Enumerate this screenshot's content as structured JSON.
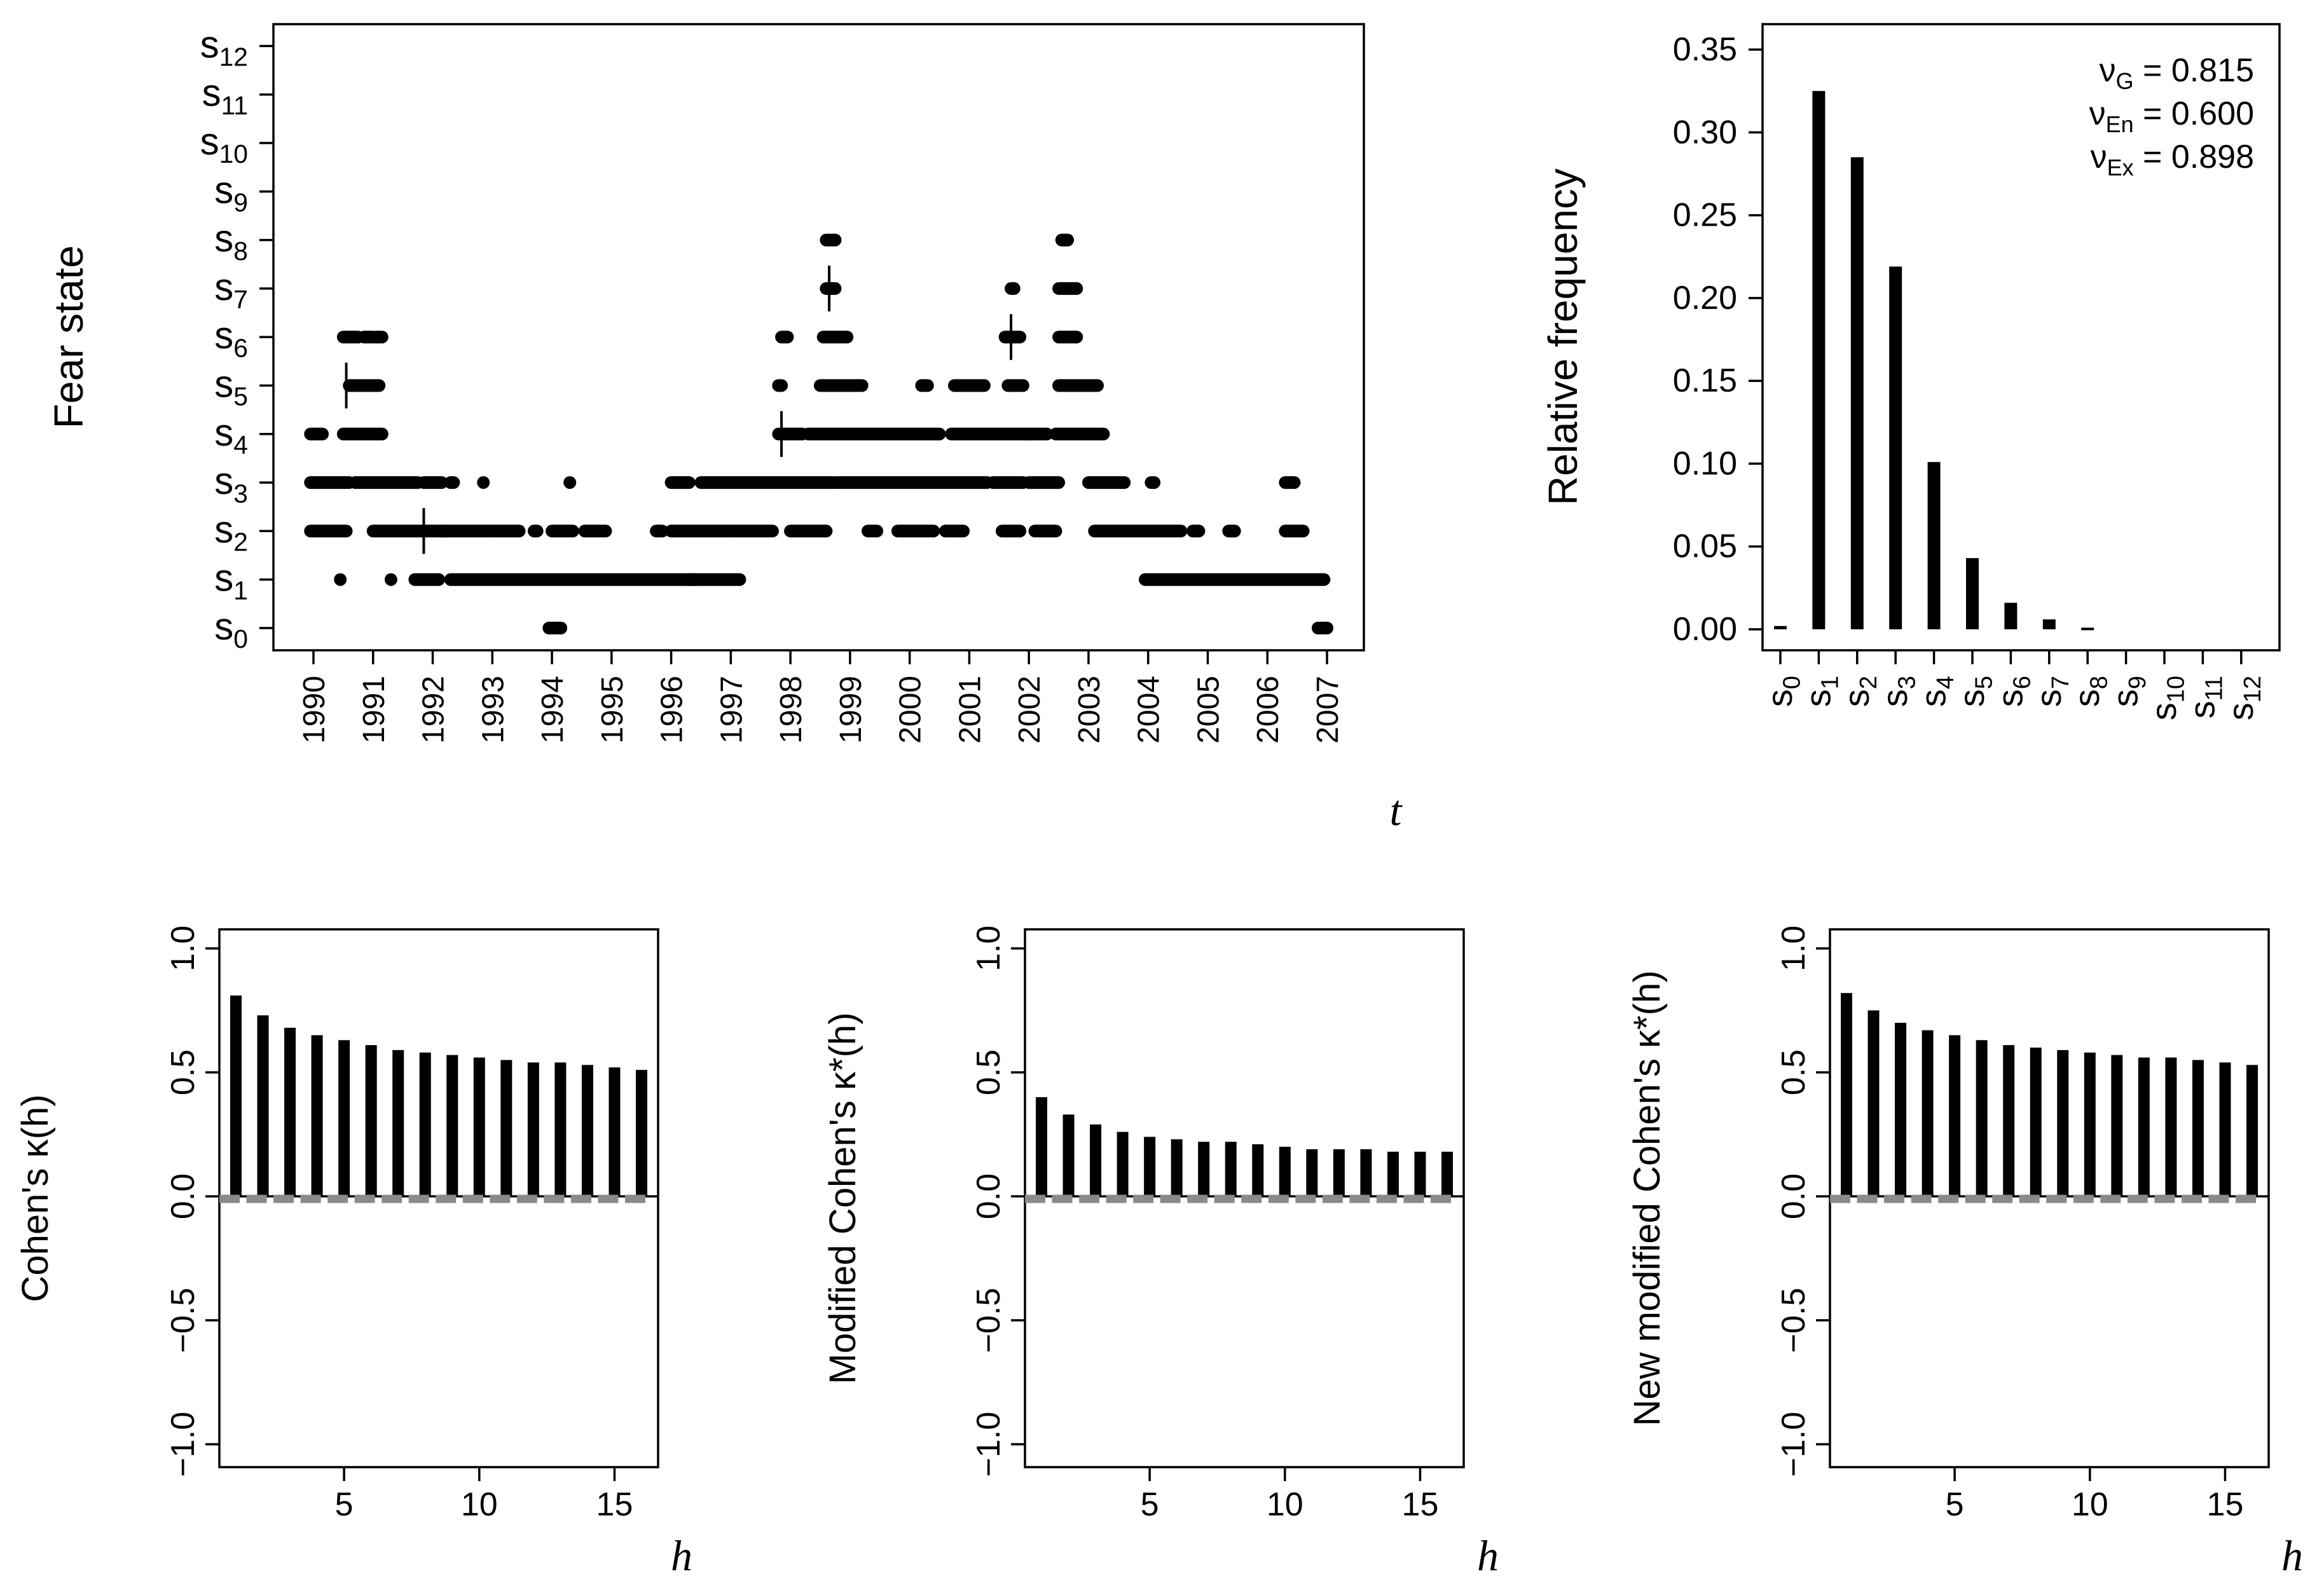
{
  "chart_data": [
    {
      "id": "fear-state-series",
      "type": "scatter",
      "title": "",
      "ylabel": "Fear state",
      "xlabel": "t",
      "y_categories": [
        "s0",
        "s1",
        "s2",
        "s3",
        "s4",
        "s5",
        "s6",
        "s7",
        "s8",
        "s9",
        "s10",
        "s11",
        "s12"
      ],
      "x_ticks": [
        "1990",
        "1991",
        "1992",
        "1993",
        "1994",
        "1995",
        "1996",
        "1997",
        "1998",
        "1999",
        "2000",
        "2001",
        "2002",
        "2003",
        "2004",
        "2005",
        "2006",
        "2007"
      ],
      "xlim": [
        1990,
        2007
      ],
      "ylim": [
        0,
        12
      ],
      "segments": [
        {
          "x": [
            1989.95,
            1990.15
          ],
          "y": 4
        },
        {
          "x": [
            1989.95,
            1990.6
          ],
          "y": 3
        },
        {
          "x": [
            1989.95,
            1990.55
          ],
          "y": 2
        },
        {
          "x": [
            1990.45,
            1990.45
          ],
          "y": 1
        },
        {
          "x": [
            1990.5,
            1990.75
          ],
          "y": 6
        },
        {
          "x": [
            1990.6,
            1991.1
          ],
          "y": 5
        },
        {
          "x": [
            1990.5,
            1991.15
          ],
          "y": 4
        },
        {
          "x": [
            1990.85,
            1991.0
          ],
          "y": 6
        },
        {
          "x": [
            1991.05,
            1991.15
          ],
          "y": 6
        },
        {
          "x": [
            1990.7,
            1991.75
          ],
          "y": 3
        },
        {
          "x": [
            1991.0,
            1992.2
          ],
          "y": 2
        },
        {
          "x": [
            1991.3,
            1991.3
          ],
          "y": 1
        },
        {
          "x": [
            1991.7,
            1992.1
          ],
          "y": 1
        },
        {
          "x": [
            1991.85,
            1992.15
          ],
          "y": 3
        },
        {
          "x": [
            1992.3,
            1992.35
          ],
          "y": 3
        },
        {
          "x": [
            1992.1,
            1993.0
          ],
          "y": 2
        },
        {
          "x": [
            1992.3,
            1996.4
          ],
          "y": 1
        },
        {
          "x": [
            1992.85,
            1992.85
          ],
          "y": 3
        },
        {
          "x": [
            1993.0,
            1993.45
          ],
          "y": 2
        },
        {
          "x": [
            1993.7,
            1993.75
          ],
          "y": 2
        },
        {
          "x": [
            1993.95,
            1994.15
          ],
          "y": 0
        },
        {
          "x": [
            1994.0,
            1994.35
          ],
          "y": 2
        },
        {
          "x": [
            1994.3,
            1994.3
          ],
          "y": 3
        },
        {
          "x": [
            1994.55,
            1994.9
          ],
          "y": 2
        },
        {
          "x": [
            1995.75,
            1995.85
          ],
          "y": 2
        },
        {
          "x": [
            1996.0,
            1997.0
          ],
          "y": 2
        },
        {
          "x": [
            1996.0,
            1996.3
          ],
          "y": 3
        },
        {
          "x": [
            1996.3,
            1997.15
          ],
          "y": 1
        },
        {
          "x": [
            1996.5,
            1997.6
          ],
          "y": 3
        },
        {
          "x": [
            1997.0,
            1997.7
          ],
          "y": 2
        },
        {
          "x": [
            1997.6,
            1998.7
          ],
          "y": 3
        },
        {
          "x": [
            1997.8,
            1997.85
          ],
          "y": 5
        },
        {
          "x": [
            1997.85,
            1997.95
          ],
          "y": 6
        },
        {
          "x": [
            1998.0,
            1998.6
          ],
          "y": 2
        },
        {
          "x": [
            1997.8,
            1998.2
          ],
          "y": 4
        },
        {
          "x": [
            1998.6,
            1998.75
          ],
          "y": 8
        },
        {
          "x": [
            1998.6,
            1998.75
          ],
          "y": 7
        },
        {
          "x": [
            1998.55,
            1998.95
          ],
          "y": 6
        },
        {
          "x": [
            1998.5,
            1999.2
          ],
          "y": 5
        },
        {
          "x": [
            1998.3,
            2000.5
          ],
          "y": 4
        },
        {
          "x": [
            1998.75,
            2001.3
          ],
          "y": 3
        },
        {
          "x": [
            1999.3,
            1999.45
          ],
          "y": 2
        },
        {
          "x": [
            1999.8,
            2000.4
          ],
          "y": 2
        },
        {
          "x": [
            2000.2,
            2000.3
          ],
          "y": 5
        },
        {
          "x": [
            2000.6,
            2000.9
          ],
          "y": 2
        },
        {
          "x": [
            2000.7,
            2002.0
          ],
          "y": 4
        },
        {
          "x": [
            2000.75,
            2001.25
          ],
          "y": 5
        },
        {
          "x": [
            2001.4,
            2001.9
          ],
          "y": 3
        },
        {
          "x": [
            2001.55,
            2001.85
          ],
          "y": 2
        },
        {
          "x": [
            2001.7,
            2001.75
          ],
          "y": 7
        },
        {
          "x": [
            2001.6,
            2001.85
          ],
          "y": 6
        },
        {
          "x": [
            2001.65,
            2001.9
          ],
          "y": 5
        },
        {
          "x": [
            2002.0,
            2002.3
          ],
          "y": 4
        },
        {
          "x": [
            2002.0,
            2002.5
          ],
          "y": 3
        },
        {
          "x": [
            2002.1,
            2002.45
          ],
          "y": 2
        },
        {
          "x": [
            2002.55,
            2002.65
          ],
          "y": 8
        },
        {
          "x": [
            2002.5,
            2002.8
          ],
          "y": 7
        },
        {
          "x": [
            2002.5,
            2002.8
          ],
          "y": 6
        },
        {
          "x": [
            2002.5,
            2003.15
          ],
          "y": 5
        },
        {
          "x": [
            2002.45,
            2003.25
          ],
          "y": 4
        },
        {
          "x": [
            2003.0,
            2003.6
          ],
          "y": 3
        },
        {
          "x": [
            2003.1,
            2004.55
          ],
          "y": 2
        },
        {
          "x": [
            2004.05,
            2004.1
          ],
          "y": 3
        },
        {
          "x": [
            2003.95,
            2006.95
          ],
          "y": 1
        },
        {
          "x": [
            2004.75,
            2004.85
          ],
          "y": 2
        },
        {
          "x": [
            2005.35,
            2005.45
          ],
          "y": 2
        },
        {
          "x": [
            2006.3,
            2006.45
          ],
          "y": 3
        },
        {
          "x": [
            2006.3,
            2006.6
          ],
          "y": 2
        },
        {
          "x": [
            2006.85,
            2007.0
          ],
          "y": 0
        }
      ],
      "mode_markers": [
        {
          "x": 1990.55,
          "y": 5
        },
        {
          "x": 1991.85,
          "y": 2
        },
        {
          "x": 1997.85,
          "y": 4
        },
        {
          "x": 1998.65,
          "y": 7
        },
        {
          "x": 2001.7,
          "y": 6
        }
      ]
    },
    {
      "id": "relative-frequency",
      "type": "bar",
      "ylabel": "Relative frequency",
      "xlabel": "",
      "categories": [
        "s0",
        "s1",
        "s2",
        "s3",
        "s4",
        "s5",
        "s6",
        "s7",
        "s8",
        "s9",
        "s10",
        "s11",
        "s12"
      ],
      "values": [
        0.002,
        0.325,
        0.285,
        0.219,
        0.101,
        0.043,
        0.016,
        0.006,
        0.001,
        0,
        0,
        0,
        0
      ],
      "ylim": [
        0,
        0.35
      ],
      "y_ticks": [
        "0.00",
        "0.05",
        "0.10",
        "0.15",
        "0.20",
        "0.25",
        "0.30",
        "0.35"
      ],
      "annotations": [
        {
          "symbol": "ν",
          "sub": "G",
          "text": " = 0.815"
        },
        {
          "symbol": "ν",
          "sub": "En",
          "text": " = 0.600"
        },
        {
          "symbol": "ν",
          "sub": "Ex",
          "text": " = 0.898"
        }
      ]
    },
    {
      "id": "cohens-kappa",
      "type": "bar",
      "ylabel": "Cohen's   κ(h)",
      "xlabel": "h",
      "x": [
        1,
        2,
        3,
        4,
        5,
        6,
        7,
        8,
        9,
        10,
        11,
        12,
        13,
        14,
        15,
        16
      ],
      "values": [
        0.81,
        0.73,
        0.68,
        0.65,
        0.63,
        0.61,
        0.59,
        0.58,
        0.57,
        0.56,
        0.55,
        0.54,
        0.54,
        0.53,
        0.52,
        0.51
      ],
      "critical_values": [
        0.005,
        0.005,
        0.005,
        0.005,
        0.005,
        0.005,
        0.005,
        0.005,
        0.005,
        0.005,
        0.005,
        0.005,
        0.005,
        0.005,
        0.005,
        0.005
      ],
      "ylim": [
        -1,
        1
      ],
      "y_ticks": [
        "−1.0",
        "−0.5",
        "0.0",
        "0.5",
        "1.0"
      ],
      "x_ticks": [
        "5",
        "10",
        "15"
      ]
    },
    {
      "id": "modified-cohens-kappa",
      "type": "bar",
      "ylabel": "Modified Cohen's   κ*(h)",
      "xlabel": "h",
      "x": [
        1,
        2,
        3,
        4,
        5,
        6,
        7,
        8,
        9,
        10,
        11,
        12,
        13,
        14,
        15,
        16
      ],
      "values": [
        0.4,
        0.33,
        0.29,
        0.26,
        0.24,
        0.23,
        0.22,
        0.22,
        0.21,
        0.2,
        0.19,
        0.19,
        0.19,
        0.18,
        0.18,
        0.18
      ],
      "critical_values": [
        0.005,
        0.005,
        0.005,
        0.005,
        0.005,
        0.005,
        0.005,
        0.005,
        0.005,
        0.005,
        0.005,
        0.005,
        0.005,
        0.005,
        0.005,
        0.005
      ],
      "ylim": [
        -1,
        1
      ],
      "y_ticks": [
        "−1.0",
        "−0.5",
        "0.0",
        "0.5",
        "1.0"
      ],
      "x_ticks": [
        "5",
        "10",
        "15"
      ]
    },
    {
      "id": "new-modified-cohens-kappa",
      "type": "bar",
      "ylabel": "New modified Cohen's   κ*(h)",
      "xlabel": "h",
      "x": [
        1,
        2,
        3,
        4,
        5,
        6,
        7,
        8,
        9,
        10,
        11,
        12,
        13,
        14,
        15,
        16
      ],
      "values": [
        0.82,
        0.75,
        0.7,
        0.67,
        0.65,
        0.63,
        0.61,
        0.6,
        0.59,
        0.58,
        0.57,
        0.56,
        0.56,
        0.55,
        0.54,
        0.53
      ],
      "critical_values": [
        0.005,
        0.005,
        0.005,
        0.005,
        0.005,
        0.005,
        0.005,
        0.005,
        0.005,
        0.005,
        0.005,
        0.005,
        0.005,
        0.005,
        0.005,
        0.005
      ],
      "ylim": [
        -1,
        1
      ],
      "y_ticks": [
        "−1.0",
        "−0.5",
        "0.0",
        "0.5",
        "1.0"
      ],
      "x_ticks": [
        "5",
        "10",
        "15"
      ]
    }
  ],
  "colors": {
    "ink": "#000000",
    "critical": "#8a8a8a"
  }
}
